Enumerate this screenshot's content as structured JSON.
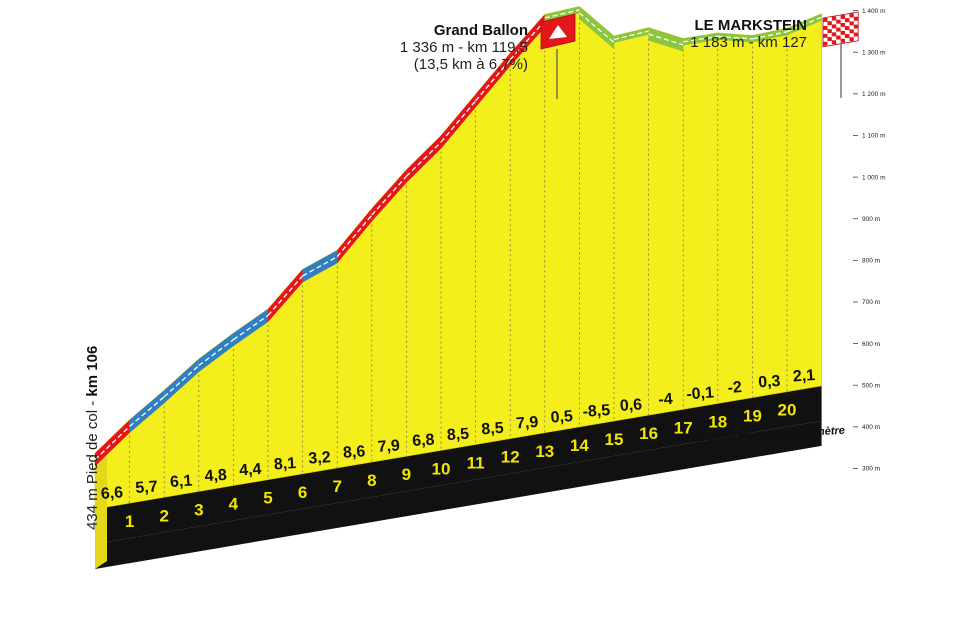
{
  "chart_data": {
    "type": "area",
    "title": "",
    "xlabel": "",
    "ylabel": "",
    "x_ticks": [
      "1",
      "2",
      "3",
      "4",
      "5",
      "6",
      "7",
      "8",
      "9",
      "10",
      "11",
      "12",
      "13",
      "14",
      "15",
      "16",
      "17",
      "18",
      "19",
      "20"
    ],
    "gradients": [
      "6,6",
      "5,7",
      "6,1",
      "4,8",
      "4,4",
      "8,1",
      "3,2",
      "8,6",
      "7,9",
      "6,8",
      "8,5",
      "8,5",
      "7,9",
      "0,5",
      "-8,5",
      "0,6",
      "-4",
      "-0,1",
      "-2",
      "0,3",
      "2,1"
    ],
    "gradient_values": [
      6.6,
      5.7,
      6.1,
      4.8,
      4.4,
      8.1,
      3.2,
      8.6,
      7.9,
      6.8,
      8.5,
      8.5,
      7.9,
      0.5,
      -8.5,
      0.6,
      -4,
      -0.1,
      -2,
      0.3,
      2.1
    ],
    "altitude_ticks": [
      "300 m",
      "400 m",
      "500 m",
      "600 m",
      "700 m",
      "800 m",
      "900 m",
      "1 000 m",
      "1 100 m",
      "1 200 m",
      "1 300 m",
      "1 400 m"
    ],
    "altitude_tick_values": [
      300,
      400,
      500,
      600,
      700,
      800,
      900,
      1000,
      1100,
      1200,
      1300,
      1400
    ],
    "ylim": [
      300,
      1400
    ],
    "gradient_colors": {
      "steep": "#e3161c",
      "medium": "#2f7fc1",
      "gentle": "#8cc63e",
      "terrain": "#f4ee1d",
      "base": "#111111"
    },
    "legend": "Pourcentage moyen par kilomètre",
    "start_label": {
      "altitude": "434 m Pied de col - ",
      "km": "km 106"
    },
    "summits": [
      {
        "name": "Grand Ballon",
        "line1": "1 336 m - km 119,5",
        "line2": "(13,5 km à 6,7%)",
        "flag": "mountain-flag"
      },
      {
        "name": "LE MARKSTEIN",
        "line1": "1 183 m - km 127",
        "flag": "finish-flag"
      }
    ]
  }
}
